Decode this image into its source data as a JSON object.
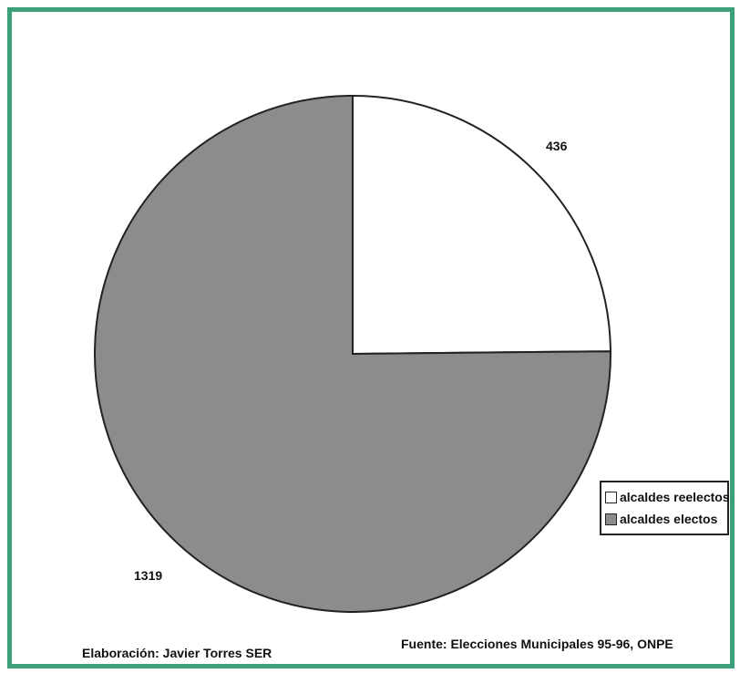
{
  "chart_data": {
    "type": "pie",
    "title": "",
    "slices": [
      {
        "label": "alcaldes reelectos",
        "value": 436,
        "color": "#ffffff"
      },
      {
        "label": "alcaldes electos",
        "value": 1319,
        "color": "#8c8c8c"
      }
    ],
    "data_labels": [
      "436",
      "1319"
    ],
    "legend": [
      "alcaldes reelectos",
      "alcaldes electos"
    ],
    "legend_position": "right",
    "start_angle": "12 o'clock",
    "direction": "clockwise"
  },
  "footer": {
    "credit": "Elaboración: Javier Torres SER",
    "source": "Fuente: Elecciones Municipales 95-96, ONPE"
  },
  "colors": {
    "frame": "#3aa07a",
    "slice_electos": "#8c8c8c",
    "slice_reelectos": "#ffffff",
    "outline": "#222222"
  }
}
